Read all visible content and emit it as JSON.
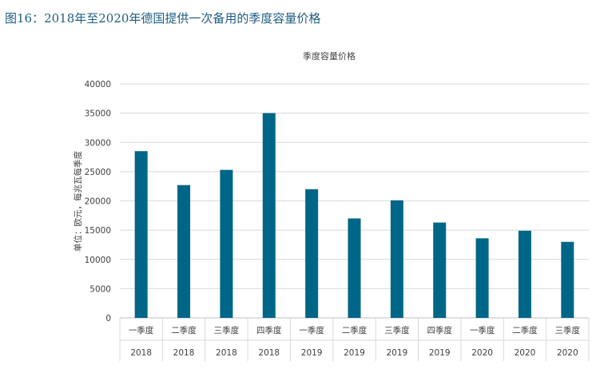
{
  "figure_caption": "图16：2018年至2020年德国提供一次备用的季度容量价格",
  "chart_data": {
    "type": "bar",
    "title": "季度容量价格",
    "ylabel": "单位：欧元，每兆瓦每季度",
    "ylim": [
      0,
      40000
    ],
    "yticks": [
      0,
      5000,
      10000,
      15000,
      20000,
      25000,
      30000,
      35000,
      40000
    ],
    "grid": true,
    "categories": [
      {
        "quarter": "一季度",
        "year": "2018"
      },
      {
        "quarter": "二季度",
        "year": "2018"
      },
      {
        "quarter": "三季度",
        "year": "2018"
      },
      {
        "quarter": "四季度",
        "year": "2018"
      },
      {
        "quarter": "一季度",
        "year": "2019"
      },
      {
        "quarter": "二季度",
        "year": "2019"
      },
      {
        "quarter": "三季度",
        "year": "2019"
      },
      {
        "quarter": "四季度",
        "year": "2019"
      },
      {
        "quarter": "一季度",
        "year": "2020"
      },
      {
        "quarter": "二季度",
        "year": "2020"
      },
      {
        "quarter": "三季度",
        "year": "2020"
      }
    ],
    "values": [
      28500,
      22700,
      25300,
      35000,
      22000,
      17000,
      20100,
      16300,
      13600,
      14900,
      13000
    ],
    "bar_color": "#006687",
    "grid_color": "#d9d9d9"
  }
}
